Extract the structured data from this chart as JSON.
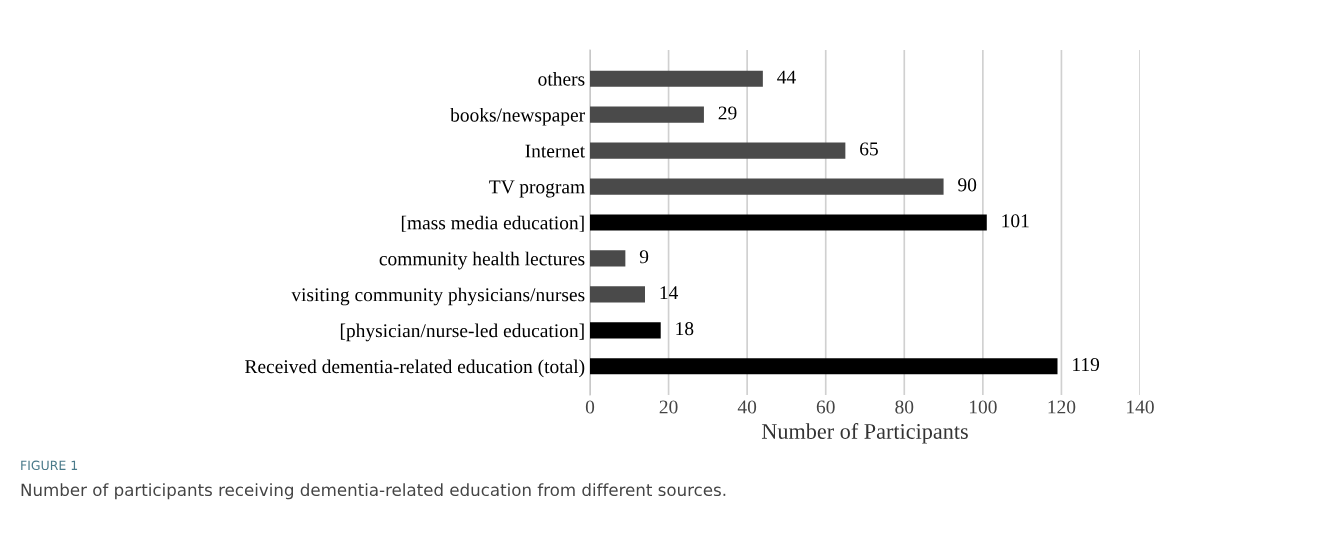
{
  "chart_data": {
    "type": "bar",
    "orientation": "horizontal",
    "categories": [
      "others",
      "books/newspaper",
      "Internet",
      "TV program",
      "[mass media education]",
      "community health lectures",
      "visiting community physicians/nurses",
      "[physician/nurse-led education]",
      "Received dementia-related education (total)"
    ],
    "values": [
      44,
      29,
      65,
      90,
      101,
      9,
      14,
      18,
      119
    ],
    "colors": [
      "#4a4a4a",
      "#4a4a4a",
      "#4a4a4a",
      "#4a4a4a",
      "#000000",
      "#4a4a4a",
      "#4a4a4a",
      "#000000",
      "#000000"
    ],
    "xlabel": "Number of Participants",
    "xlim": [
      0,
      140
    ],
    "xticks": [
      0,
      20,
      40,
      60,
      80,
      100,
      120,
      140
    ],
    "grid": "x",
    "data_labels": true,
    "annotations": [
      "FIGURE 1",
      "Number of participants receiving dementia-related education from different sources."
    ]
  }
}
